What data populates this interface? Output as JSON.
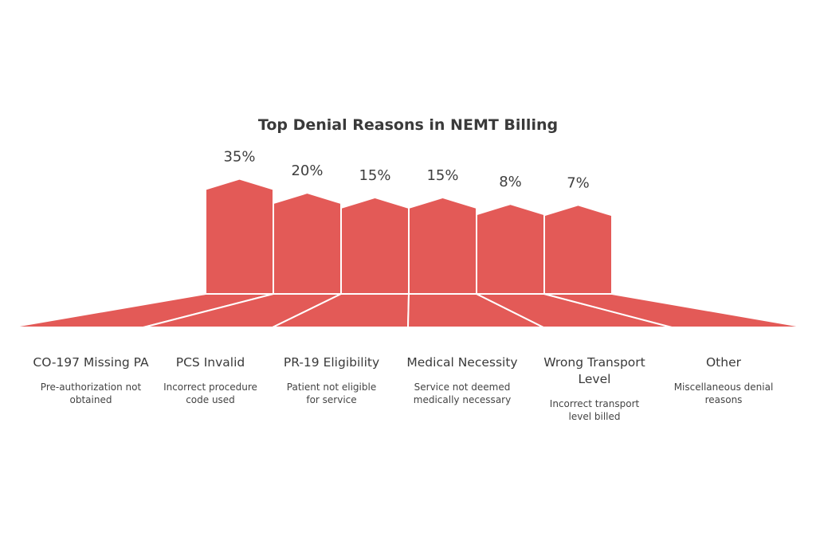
{
  "chart_data": {
    "type": "bar",
    "title": "Top Denial Reasons in NEMT Billing",
    "value_suffix": "%",
    "bar_color": "#e35a57",
    "categories": [
      "CO-197 Missing PA",
      "PCS Invalid",
      "PR-19 Eligibility",
      "Medical Necessity",
      "Wrong Transport Level",
      "Other"
    ],
    "values": [
      35,
      20,
      15,
      15,
      8,
      7
    ],
    "value_labels": [
      "35%",
      "20%",
      "15%",
      "15%",
      "8%",
      "7%"
    ],
    "descriptions": [
      "Pre-authorization not obtained",
      "Incorrect procedure code used",
      "Patient not eligible for service",
      "Service not deemed medically necessary",
      "Incorrect transport level billed",
      "Miscellaneous denial reasons"
    ]
  }
}
